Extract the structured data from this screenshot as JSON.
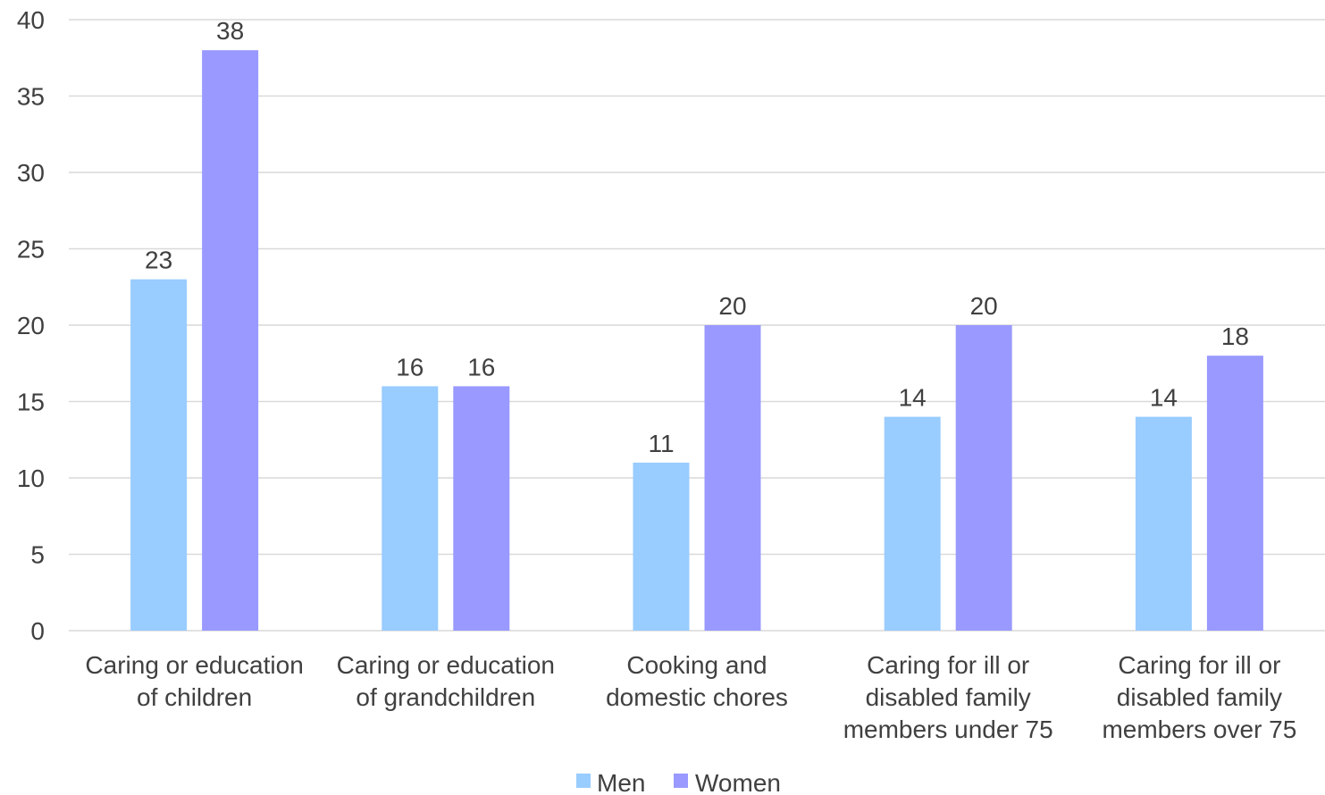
{
  "chart_data": {
    "type": "bar",
    "title": "",
    "xlabel": "",
    "ylabel": "",
    "ylim": [
      0,
      40
    ],
    "yticks": [
      0,
      5,
      10,
      15,
      20,
      25,
      30,
      35,
      40
    ],
    "grid": true,
    "legend_position": "bottom",
    "categories": [
      [
        "Caring or education",
        "of children"
      ],
      [
        "Caring or education",
        "of grandchildren"
      ],
      [
        "Cooking and",
        "domestic chores"
      ],
      [
        "Caring for ill or",
        "disabled family",
        "members under 75"
      ],
      [
        "Caring for ill or",
        "disabled family",
        "members over 75"
      ]
    ],
    "series": [
      {
        "name": "Men",
        "color": "#99ccff",
        "values": [
          23,
          16,
          11,
          14,
          14
        ]
      },
      {
        "name": "Women",
        "color": "#9999ff",
        "values": [
          38,
          16,
          20,
          20,
          18
        ]
      }
    ]
  }
}
